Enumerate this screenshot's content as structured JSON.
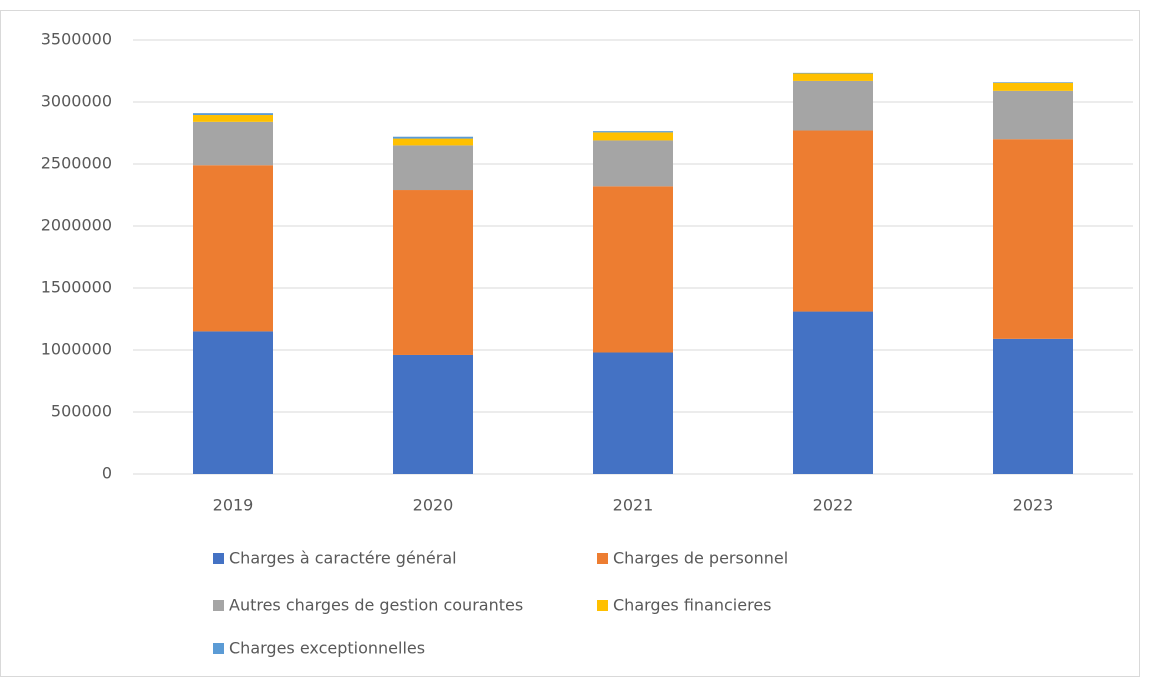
{
  "chart_data": {
    "type": "stacked_bar",
    "categories": [
      "2019",
      "2020",
      "2021",
      "2022",
      "2023"
    ],
    "series": [
      {
        "name": "Charges à caractére général",
        "color": "#4472c4",
        "values": [
          1150000,
          960000,
          980000,
          1310000,
          1090000
        ]
      },
      {
        "name": "Charges de personnel",
        "color": "#ed7d31",
        "values": [
          1340000,
          1330000,
          1340000,
          1460000,
          1610000
        ]
      },
      {
        "name": "Autres charges de gestion courantes",
        "color": "#a5a5a5",
        "values": [
          350000,
          360000,
          370000,
          400000,
          390000
        ]
      },
      {
        "name": "Charges financieres",
        "color": "#ffc000",
        "values": [
          55000,
          55000,
          65000,
          60000,
          65000
        ]
      },
      {
        "name": "Charges exceptionnelles",
        "color": "#5b9bd5",
        "values": [
          15000,
          15000,
          10000,
          5000,
          5000
        ]
      }
    ],
    "ylim": [
      0,
      3500000
    ],
    "yticks": [
      0,
      500000,
      1000000,
      1500000,
      2000000,
      2500000,
      3000000,
      3500000
    ],
    "grid": true,
    "legend": "bottom"
  }
}
